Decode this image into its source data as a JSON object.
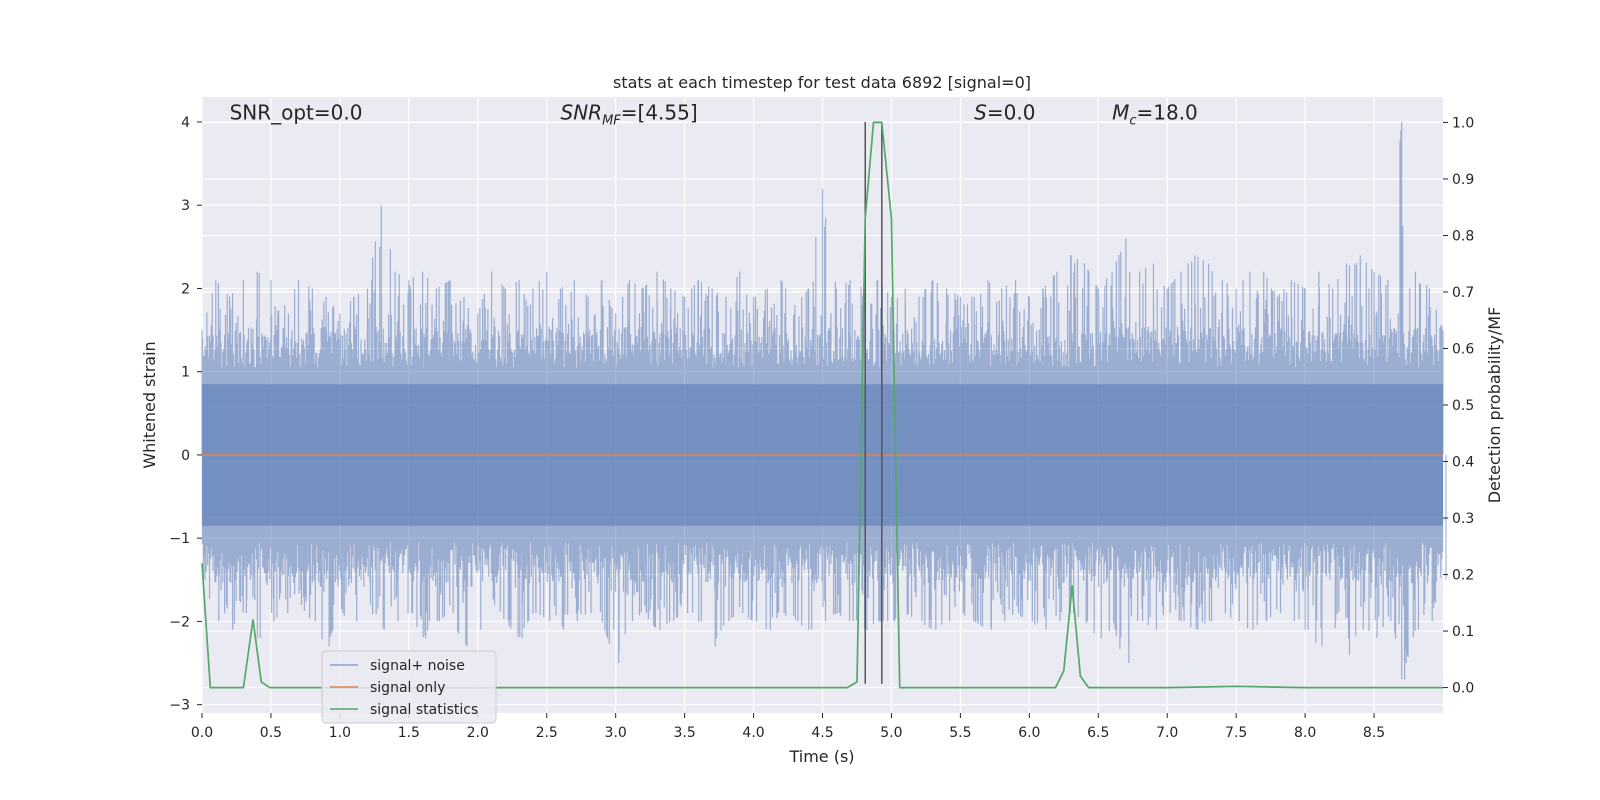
{
  "chart_data": {
    "type": "line",
    "title": "stats at each timestep for test data 6892 [signal=0]",
    "xlabel": "Time (s)",
    "ylabel_left": "Whitened strain",
    "ylabel_right": "Detection probability/MF",
    "xlim": [
      0.0,
      9.0
    ],
    "ylim_left": [
      -3.1,
      4.3
    ],
    "ylim_right": [
      -0.045,
      1.045
    ],
    "grid": true,
    "x_ticks": [
      0.0,
      0.5,
      1.0,
      1.5,
      2.0,
      2.5,
      3.0,
      3.5,
      4.0,
      4.5,
      5.0,
      5.5,
      6.0,
      6.5,
      7.0,
      7.5,
      8.0,
      8.5
    ],
    "x_tick_labels": [
      "0.0",
      "0.5",
      "1.0",
      "1.5",
      "2.0",
      "2.5",
      "3.0",
      "3.5",
      "4.0",
      "4.5",
      "5.0",
      "5.5",
      "6.0",
      "6.5",
      "7.0",
      "7.5",
      "8.0",
      "8.5"
    ],
    "y_left_ticks": [
      -3,
      -2,
      -1,
      0,
      1,
      2,
      3,
      4
    ],
    "y_left_tick_labels": [
      "−3",
      "−2",
      "−1",
      "0",
      "1",
      "2",
      "3",
      "4"
    ],
    "y_right_ticks": [
      0.0,
      0.1,
      0.2,
      0.3,
      0.4,
      0.5,
      0.6,
      0.7,
      0.8,
      0.9,
      1.0
    ],
    "y_right_tick_labels": [
      "0.0",
      "0.1",
      "0.2",
      "0.3",
      "0.4",
      "0.5",
      "0.6",
      "0.7",
      "0.8",
      "0.9",
      "1.0"
    ],
    "annotations": [
      {
        "text": "SNR_opt=0.0",
        "x": 0.2,
        "y": 4.1
      },
      {
        "text": "SNR",
        "sub": "MF",
        "rest": "=[4.55]",
        "italic": true,
        "x": 2.6,
        "y": 4.1
      },
      {
        "text": "S",
        "rest": "=0.0",
        "italic": true,
        "x": 5.6,
        "y": 4.1
      },
      {
        "text": "M",
        "sub": "c",
        "rest": "=18.0",
        "italic": true,
        "x": 6.6,
        "y": 4.1
      }
    ],
    "vlines": [
      {
        "x": 4.81,
        "ymin": -2.75,
        "ymax": 4.0
      },
      {
        "x": 4.93,
        "ymin": -2.75,
        "ymax": 4.0
      }
    ],
    "series": [
      {
        "name": "signal+ noise",
        "color": "#4c72b0",
        "axis": "left",
        "envelope": {
          "t": [
            0.0,
            0.1,
            0.2,
            0.3,
            0.4,
            0.5,
            0.6,
            0.7,
            0.8,
            0.9,
            1.0,
            1.1,
            1.2,
            1.3,
            1.4,
            1.5,
            1.6,
            1.7,
            1.8,
            1.9,
            2.0,
            2.1,
            2.2,
            2.3,
            2.4,
            2.5,
            2.6,
            2.7,
            2.8,
            2.9,
            3.0,
            3.1,
            3.2,
            3.3,
            3.4,
            3.5,
            3.6,
            3.7,
            3.8,
            3.9,
            4.0,
            4.1,
            4.2,
            4.3,
            4.4,
            4.5,
            4.6,
            4.7,
            4.8,
            4.9,
            5.0,
            5.1,
            5.2,
            5.3,
            5.4,
            5.5,
            5.6,
            5.7,
            5.8,
            5.9,
            6.0,
            6.1,
            6.2,
            6.3,
            6.4,
            6.5,
            6.6,
            6.7,
            6.8,
            6.9,
            7.0,
            7.1,
            7.2,
            7.3,
            7.4,
            7.5,
            7.6,
            7.7,
            7.8,
            7.9,
            8.0,
            8.1,
            8.2,
            8.3,
            8.4,
            8.5,
            8.6,
            8.7,
            8.8,
            8.9,
            9.0
          ],
          "max": [
            1.5,
            2.1,
            1.9,
            2.1,
            2.2,
            2.1,
            1.8,
            2.1,
            2.0,
            1.9,
            1.7,
            1.9,
            2.0,
            3.0,
            2.2,
            2.1,
            2.2,
            2.0,
            2.1,
            1.9,
            1.7,
            2.2,
            2.0,
            2.1,
            2.0,
            2.2,
            2.0,
            2.1,
            1.9,
            2.1,
            1.7,
            2.1,
            2.0,
            2.2,
            2.0,
            1.9,
            2.1,
            2.0,
            1.9,
            2.2,
            1.9,
            2.0,
            2.1,
            1.8,
            2.0,
            3.2,
            2.0,
            2.1,
            2.0,
            2.1,
            1.9,
            2.0,
            1.9,
            2.1,
            2.0,
            1.9,
            1.9,
            2.1,
            2.0,
            2.1,
            1.9,
            2.0,
            2.2,
            2.4,
            2.3,
            2.0,
            2.2,
            2.6,
            2.2,
            2.3,
            2.0,
            2.2,
            2.4,
            2.3,
            2.1,
            2.0,
            2.2,
            2.2,
            1.9,
            2.1,
            2.0,
            2.2,
            2.0,
            2.3,
            2.4,
            2.2,
            2.1,
            4.0,
            2.2,
            2.0,
            1.5
          ],
          "min": [
            -1.5,
            -2.0,
            -2.1,
            -1.9,
            -2.2,
            -2.0,
            -1.9,
            -1.8,
            -2.0,
            -2.3,
            -1.9,
            -2.0,
            -1.8,
            -2.1,
            -2.0,
            -1.9,
            -2.2,
            -2.0,
            -1.9,
            -2.3,
            -2.1,
            -1.8,
            -2.0,
            -2.2,
            -1.9,
            -2.0,
            -2.1,
            -2.0,
            -1.9,
            -2.0,
            -2.5,
            -2.0,
            -1.9,
            -2.1,
            -2.0,
            -1.9,
            -2.0,
            -2.3,
            -2.0,
            -1.9,
            -2.0,
            -2.1,
            -1.9,
            -2.0,
            -2.1,
            -2.0,
            -1.9,
            -2.0,
            -2.1,
            -2.0,
            -2.0,
            -1.9,
            -2.0,
            -2.1,
            -2.0,
            -1.9,
            -2.0,
            -2.1,
            -2.0,
            -1.9,
            -2.0,
            -2.1,
            -2.0,
            -1.9,
            -2.0,
            -2.2,
            -2.1,
            -2.5,
            -2.0,
            -2.1,
            -1.9,
            -2.0,
            -2.1,
            -2.0,
            -1.9,
            -2.0,
            -2.1,
            -2.0,
            -1.9,
            -2.0,
            -2.1,
            -2.3,
            -2.0,
            -2.4,
            -2.1,
            -2.2,
            -2.0,
            -2.7,
            -2.1,
            -2.0,
            -1.5
          ],
          "dense_band": [
            -0.85,
            0.85
          ],
          "typical_band": [
            -1.4,
            1.4
          ]
        }
      },
      {
        "name": "signal only",
        "color": "#dd8452",
        "axis": "left",
        "x": [
          0.0,
          9.0
        ],
        "values": [
          0.0,
          0.0
        ]
      },
      {
        "name": "signal statistics",
        "color": "#55a868",
        "axis": "right",
        "x": [
          0.0,
          0.06,
          0.12,
          0.18,
          0.24,
          0.3,
          0.37,
          0.43,
          0.49,
          4.68,
          4.75,
          4.81,
          4.87,
          4.93,
          5.0,
          5.06,
          5.12,
          6.19,
          6.25,
          6.31,
          6.37,
          6.43,
          7.0,
          7.5,
          8.0,
          9.0
        ],
        "values": [
          0.22,
          0.0,
          0.0,
          0.0,
          0.0,
          0.0,
          0.12,
          0.01,
          0.0,
          0.0,
          0.01,
          0.83,
          1.0,
          1.0,
          0.83,
          0.0,
          0.0,
          0.0,
          0.03,
          0.18,
          0.02,
          0.0,
          0.0,
          0.002,
          0.0,
          0.0
        ]
      }
    ],
    "legend": {
      "position": "lower-left",
      "entries": [
        {
          "label": "signal+ noise",
          "color": "#4c72b0"
        },
        {
          "label": "signal only",
          "color": "#dd8452"
        },
        {
          "label": "signal statistics",
          "color": "#55a868"
        }
      ]
    }
  }
}
